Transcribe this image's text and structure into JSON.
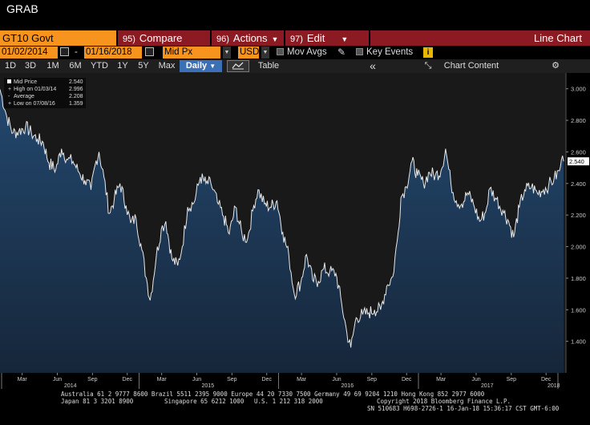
{
  "window": {
    "title": "GRAB"
  },
  "command_bar": {
    "ticker": "GT10 Govt",
    "compare": {
      "num": "95)",
      "label": "Compare"
    },
    "actions": {
      "num": "96)",
      "label": "Actions"
    },
    "edit": {
      "num": "97)",
      "label": "Edit"
    },
    "chart_type": "Line Chart",
    "brand_color": "#f7941d",
    "menu_color": "#8c1a22"
  },
  "params": {
    "start_date": "01/02/2014",
    "separator": "-",
    "end_date": "01/16/2018",
    "field": "Mid Px",
    "currency": "USD",
    "mov_avgs": "Mov Avgs",
    "key_events": "Key Events"
  },
  "range_bar": {
    "buttons": [
      "1D",
      "3D",
      "1M",
      "6M",
      "YTD",
      "1Y",
      "5Y",
      "Max"
    ],
    "period": "Daily",
    "table": "Table",
    "collapse": "«",
    "chart_content": "Chart Content"
  },
  "legend": {
    "rows": [
      {
        "label": "Mid Price",
        "value": "2.540"
      },
      {
        "label": "High on 01/03/14",
        "value": "2.996"
      },
      {
        "label": "Average",
        "value": "2.208"
      },
      {
        "label": "Low on 07/08/16",
        "value": "1.359"
      }
    ]
  },
  "last_value_tag": "2.540",
  "chart_data": {
    "type": "area",
    "series": [
      {
        "name": "Mid Price",
        "x": [
          "2014-01-02",
          "2014-01-20",
          "2014-02-05",
          "2014-02-20",
          "2014-03-10",
          "2014-03-25",
          "2014-04-10",
          "2014-04-25",
          "2014-05-10",
          "2014-05-28",
          "2014-06-12",
          "2014-06-28",
          "2014-07-12",
          "2014-07-28",
          "2014-08-12",
          "2014-08-28",
          "2014-09-08",
          "2014-09-18",
          "2014-10-01",
          "2014-10-15",
          "2014-10-28",
          "2014-11-12",
          "2014-11-28",
          "2014-12-10",
          "2014-12-24",
          "2015-01-08",
          "2015-01-20",
          "2015-01-30",
          "2015-02-15",
          "2015-02-28",
          "2015-03-12",
          "2015-03-28",
          "2015-04-12",
          "2015-04-24",
          "2015-05-08",
          "2015-05-25",
          "2015-06-10",
          "2015-06-25",
          "2015-07-08",
          "2015-07-25",
          "2015-08-10",
          "2015-08-25",
          "2015-09-10",
          "2015-09-28",
          "2015-10-12",
          "2015-10-28",
          "2015-11-08",
          "2015-11-25",
          "2015-12-10",
          "2015-12-28",
          "2016-01-12",
          "2016-01-28",
          "2016-02-11",
          "2016-02-28",
          "2016-03-14",
          "2016-03-30",
          "2016-04-14",
          "2016-04-28",
          "2016-05-14",
          "2016-05-30",
          "2016-06-14",
          "2016-06-28",
          "2016-07-08",
          "2016-07-22",
          "2016-08-08",
          "2016-08-24",
          "2016-09-08",
          "2016-09-24",
          "2016-10-10",
          "2016-10-26",
          "2016-11-09",
          "2016-11-16",
          "2016-11-30",
          "2016-12-15",
          "2016-12-30",
          "2017-01-14",
          "2017-01-30",
          "2017-02-14",
          "2017-03-01",
          "2017-03-13",
          "2017-03-27",
          "2017-04-10",
          "2017-04-24",
          "2017-05-10",
          "2017-05-25",
          "2017-06-10",
          "2017-06-26",
          "2017-07-07",
          "2017-07-24",
          "2017-08-10",
          "2017-08-25",
          "2017-09-07",
          "2017-09-22",
          "2017-10-06",
          "2017-10-24",
          "2017-11-08",
          "2017-11-24",
          "2017-12-08",
          "2017-12-22",
          "2018-01-05",
          "2018-01-10",
          "2018-01-16"
        ],
        "y": [
          2.996,
          2.82,
          2.72,
          2.73,
          2.76,
          2.72,
          2.68,
          2.66,
          2.53,
          2.49,
          2.62,
          2.55,
          2.54,
          2.47,
          2.42,
          2.36,
          2.52,
          2.6,
          2.44,
          2.21,
          2.3,
          2.4,
          2.26,
          2.15,
          2.18,
          1.98,
          1.8,
          1.66,
          1.94,
          2.11,
          2.16,
          1.92,
          1.88,
          2.0,
          2.25,
          2.28,
          2.44,
          2.4,
          2.4,
          2.28,
          2.19,
          2.08,
          2.25,
          2.07,
          2.05,
          2.26,
          2.36,
          2.27,
          2.25,
          2.29,
          2.09,
          1.94,
          1.7,
          1.77,
          1.95,
          1.79,
          1.78,
          1.86,
          1.84,
          1.83,
          1.64,
          1.45,
          1.36,
          1.55,
          1.57,
          1.58,
          1.6,
          1.6,
          1.75,
          1.81,
          2.09,
          2.31,
          2.38,
          2.54,
          2.45,
          2.4,
          2.47,
          2.45,
          2.48,
          2.62,
          2.4,
          2.29,
          2.27,
          2.34,
          2.27,
          2.16,
          2.22,
          2.37,
          2.3,
          2.23,
          2.16,
          2.06,
          2.25,
          2.36,
          2.38,
          2.34,
          2.36,
          2.39,
          2.43,
          2.48,
          2.55,
          2.54
        ]
      }
    ],
    "ylim": [
      1.2,
      3.1
    ],
    "y_ticks": [
      "3.000",
      "2.800",
      "2.600",
      "2.400",
      "2.200",
      "2.000",
      "1.800",
      "1.600",
      "1.400"
    ],
    "x_month_labels": [
      {
        "label": "Mar",
        "date": "2014-03-01"
      },
      {
        "label": "Jun",
        "date": "2014-06-01"
      },
      {
        "label": "Sep",
        "date": "2014-09-01"
      },
      {
        "label": "Dec",
        "date": "2014-12-01"
      },
      {
        "label": "Mar",
        "date": "2015-03-01"
      },
      {
        "label": "Jun",
        "date": "2015-06-01"
      },
      {
        "label": "Sep",
        "date": "2015-09-01"
      },
      {
        "label": "Dec",
        "date": "2015-12-01"
      },
      {
        "label": "Mar",
        "date": "2016-03-01"
      },
      {
        "label": "Jun",
        "date": "2016-06-01"
      },
      {
        "label": "Sep",
        "date": "2016-09-01"
      },
      {
        "label": "Dec",
        "date": "2016-12-01"
      },
      {
        "label": "Mar",
        "date": "2017-03-01"
      },
      {
        "label": "Jun",
        "date": "2017-06-01"
      },
      {
        "label": "Sep",
        "date": "2017-09-01"
      },
      {
        "label": "Dec",
        "date": "2017-12-01"
      }
    ],
    "x_year_labels": [
      {
        "label": "2014",
        "date": "2014-01-01"
      },
      {
        "label": "2015",
        "date": "2015-01-01"
      },
      {
        "label": "2016",
        "date": "2016-01-01"
      },
      {
        "label": "2017",
        "date": "2017-01-01"
      },
      {
        "label": "2018",
        "date": "2018-01-01"
      }
    ],
    "x_range": [
      "2014-01-02",
      "2018-01-22"
    ],
    "grid": false,
    "legend_position": "top-left",
    "line_color": "#e8e8e8",
    "fill_top_color": "#23486e",
    "fill_bottom_color": "#16263a"
  },
  "footer": {
    "line1": "Australia 61 2 9777 8600 Brazil 5511 2395 9000 Europe 44 20 7330 7500 Germany 49 69 9204 1210 Hong Kong 852 2977 6000",
    "line2a": "Japan 81 3 3201 8900",
    "line2b": "Singapore 65 6212 1000",
    "line2c": "U.S. 1 212 318 2000",
    "line2d": "Copyright 2018 Bloomberg Finance L.P.",
    "line3": "SN 510683 H698-2726-1 16-Jan-18 15:36:17 CST  GMT-6:00"
  }
}
